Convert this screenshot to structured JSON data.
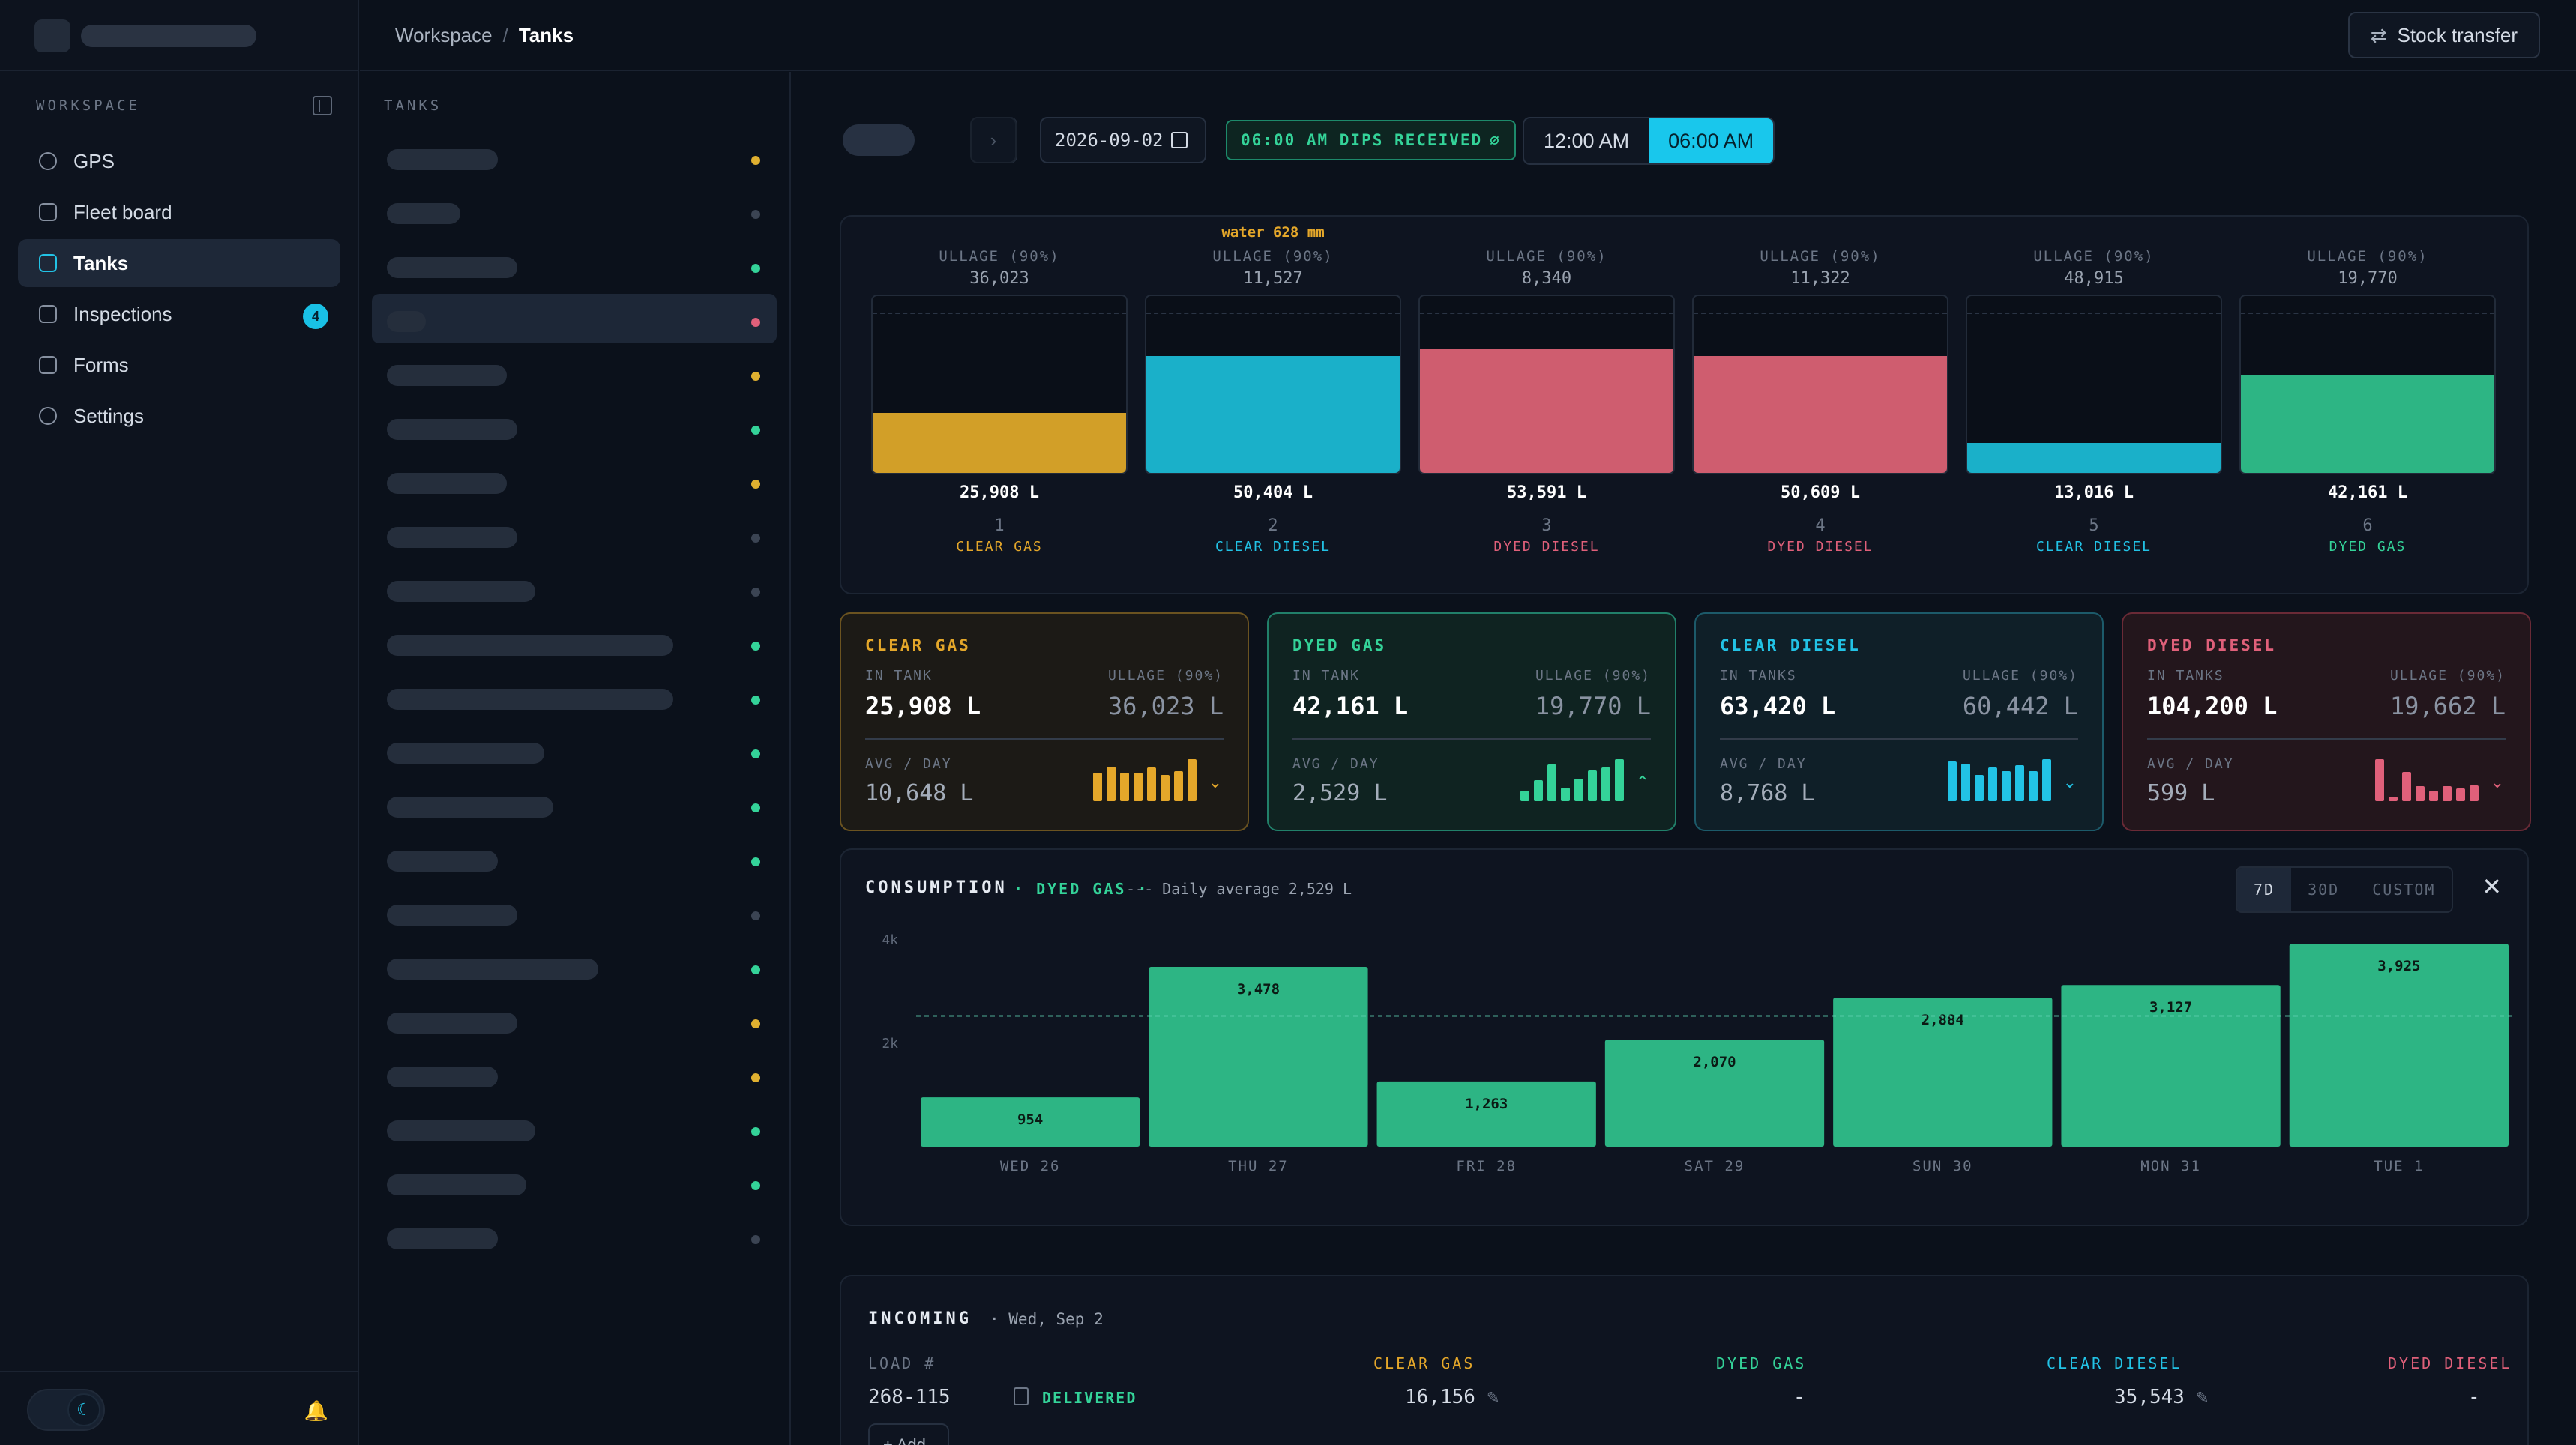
{
  "header": {
    "breadcrumb": [
      "Workspace",
      "Tanks"
    ],
    "stock_transfer": "Stock transfer"
  },
  "sidebar": {
    "section": "WORKSPACE",
    "items": [
      {
        "label": "GPS",
        "icon": "gps-icon"
      },
      {
        "label": "Fleet board",
        "icon": "truck-icon"
      },
      {
        "label": "Tanks",
        "icon": "tank-icon",
        "active": true
      },
      {
        "label": "Inspections",
        "icon": "clipboard-icon",
        "badge": "4"
      },
      {
        "label": "Forms",
        "icon": "form-icon"
      },
      {
        "label": "Settings",
        "icon": "gear-icon"
      }
    ]
  },
  "tanklist": {
    "label": "TANKS",
    "selected_index": 3,
    "dots": [
      "#e0b030",
      "#3b4453",
      "#34d399",
      "#e0607a",
      "#e0b030",
      "#34d399",
      "#e0b030",
      "#3b4453",
      "#3b4453",
      "#34d399",
      "#34d399",
      "#34d399",
      "#34d399",
      "#34d399",
      "#3b4453",
      "#34d399",
      "#e0b030",
      "#e0b030",
      "#34d399",
      "#34d399",
      "#3b4453"
    ]
  },
  "toolbar": {
    "date": "2026-09-02",
    "dips": "06:00 AM DIPS RECEIVED",
    "times": [
      "12:00 AM",
      "06:00 AM"
    ],
    "active_time": 1,
    "prev": "‹",
    "next": "›"
  },
  "tanks": [
    {
      "ullage_label": "ULLAGE (90%)",
      "ullage": "36,023",
      "volume": "25,908 L",
      "num": "1",
      "type": "CLEAR GAS",
      "color": "#d29f28",
      "fill": 0.34
    },
    {
      "ullage_label": "ULLAGE (90%)",
      "ullage": "11,527",
      "volume": "50,404 L",
      "num": "2",
      "type": "CLEAR DIESEL",
      "color": "#1ab0c9",
      "fill": 0.66,
      "water": "water 628 mm"
    },
    {
      "ullage_label": "ULLAGE (90%)",
      "ullage": "8,340",
      "volume": "53,591 L",
      "num": "3",
      "type": "DYED DIESEL",
      "color": "#cf5d6f",
      "fill": 0.7
    },
    {
      "ullage_label": "ULLAGE (90%)",
      "ullage": "11,322",
      "volume": "50,609 L",
      "num": "4",
      "type": "DYED DIESEL",
      "color": "#cf5d6f",
      "fill": 0.66
    },
    {
      "ullage_label": "ULLAGE (90%)",
      "ullage": "48,915",
      "volume": "13,016 L",
      "num": "5",
      "type": "CLEAR DIESEL",
      "color": "#1ab0c9",
      "fill": 0.17
    },
    {
      "ullage_label": "ULLAGE (90%)",
      "ullage": "19,770",
      "volume": "42,161 L",
      "num": "6",
      "type": "DYED GAS",
      "color": "#2db584",
      "fill": 0.55
    }
  ],
  "tank_type_colors": {
    "CLEAR GAS": "#e4a72a",
    "CLEAR DIESEL": "#22c3e6",
    "DYED DIESEL": "#e0607a",
    "DYED GAS": "#34d399"
  },
  "cards": [
    {
      "name": "CLEAR GAS",
      "in_label": "IN TANK",
      "in_value": "25,908 L",
      "ullage_label": "ULLAGE (90%)",
      "ullage_value": "36,023 L",
      "avg_label": "AVG / DAY",
      "avg_value": "10,648 L",
      "color": "#e4a72a",
      "bg": "#1c1a16",
      "border": "#6b5320",
      "spark": [
        0.68,
        0.82,
        0.68,
        0.68,
        0.8,
        0.62,
        0.72,
        1.0
      ],
      "chev": "⌄"
    },
    {
      "name": "DYED GAS",
      "in_label": "IN TANK",
      "in_value": "42,161 L",
      "ullage_label": "ULLAGE (90%)",
      "ullage_value": "19,770 L",
      "avg_label": "AVG / DAY",
      "avg_value": "2,529 L",
      "color": "#34d399",
      "bg": "#0f2321",
      "border": "#21806a",
      "spark": [
        0.25,
        0.5,
        0.88,
        0.32,
        0.53,
        0.73,
        0.8,
        1.0
      ],
      "chev": "⌃"
    },
    {
      "name": "CLEAR DIESEL",
      "in_label": "IN TANKS",
      "in_value": "63,420 L",
      "ullage_label": "ULLAGE (90%)",
      "ullage_value": "60,442 L",
      "avg_label": "AVG / DAY",
      "avg_value": "8,768 L",
      "color": "#22c3e6",
      "bg": "#0f1f28",
      "border": "#1c5a6a",
      "spark": [
        0.95,
        0.9,
        0.62,
        0.8,
        0.72,
        0.85,
        0.72,
        1.0
      ],
      "chev": "⌄"
    },
    {
      "name": "DYED DIESEL",
      "in_label": "IN TANKS",
      "in_value": "104,200 L",
      "ullage_label": "ULLAGE (90%)",
      "ullage_value": "19,662 L",
      "avg_label": "AVG / DAY",
      "avg_value": "599 L",
      "color": "#e0607a",
      "bg": "#23161c",
      "border": "#6a2a36",
      "spark": [
        1.0,
        0.1,
        0.7,
        0.35,
        0.25,
        0.35,
        0.3,
        0.38
      ],
      "chev": "⌄"
    }
  ],
  "consumption": {
    "title": "CONSUMPTION",
    "product": "DYED GAS",
    "avg_text": "Daily average 2,529 L",
    "ranges": [
      "7D",
      "30D",
      "CUSTOM"
    ],
    "active_range": 0,
    "close": "✕"
  },
  "chart_data": {
    "type": "bar",
    "categories": [
      "WED 26",
      "THU 27",
      "FRI 28",
      "SAT 29",
      "SUN 30",
      "MON 31",
      "TUE 1"
    ],
    "values": [
      954,
      3478,
      1263,
      2070,
      2884,
      3127,
      3925
    ],
    "value_labels": [
      "954",
      "3,478",
      "1,263",
      "2,070",
      "2,884",
      "3,127",
      "3,925"
    ],
    "ylim": [
      0,
      4000
    ],
    "yticks": [
      {
        "v": 2000,
        "label": "2k"
      },
      {
        "v": 4000,
        "label": "4k"
      }
    ],
    "average": 2529,
    "color": "#2db584",
    "grid": false
  },
  "incoming": {
    "title": "INCOMING",
    "date": "· Wed, Sep 2",
    "headers": [
      "LOAD #",
      "CLEAR GAS",
      "DYED GAS",
      "CLEAR DIESEL",
      "DYED DIESEL"
    ],
    "row": {
      "load": "268-115",
      "status": "DELIVERED",
      "clear_gas": "16,156",
      "dyed_gas": "-",
      "clear_diesel": "35,543",
      "dyed_diesel": "-"
    },
    "add": "+ Add"
  }
}
